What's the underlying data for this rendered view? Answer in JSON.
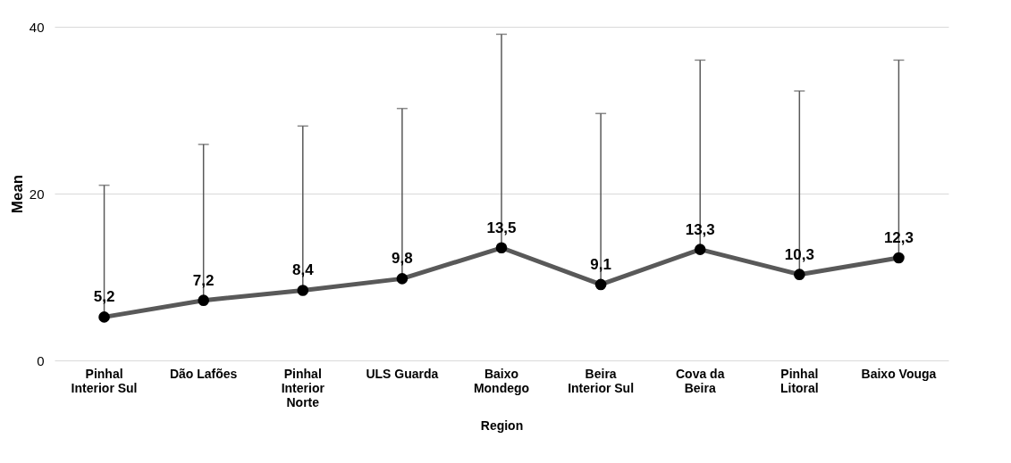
{
  "chart_data": {
    "type": "line",
    "xlabel": "Region",
    "ylabel": "Mean",
    "categories": [
      "Pinhal Interior Sul",
      "Dão Lafões",
      "Pinhal Interior Norte",
      "ULS Guarda",
      "Baixo Mondego",
      "Beira Interior Sul",
      "Cova da Beira",
      "Pinhal Litoral",
      "Baixo Vouga"
    ],
    "series": [
      {
        "color": "#595959",
        "values": [
          5.2,
          7.2,
          8.4,
          9.8,
          13.5,
          9.1,
          13.3,
          10.3,
          12.3
        ],
        "value_labels": [
          "5,2",
          "7,2",
          "8,4",
          "9,8",
          "13,5",
          "9,1",
          "13,3",
          "10,3",
          "12,3"
        ],
        "errors": [
          [
            5.2,
            21.0
          ],
          [
            7.2,
            25.9
          ],
          [
            8.4,
            28.1
          ],
          [
            9.8,
            30.2
          ],
          [
            13.5,
            39.1
          ],
          [
            9.1,
            29.6
          ],
          [
            13.3,
            36.0
          ],
          [
            10.3,
            32.3
          ],
          [
            12.3,
            36.0
          ]
        ]
      }
    ],
    "ylim": [
      0,
      40
    ],
    "yticks": [
      0,
      20,
      40
    ],
    "grid": "y",
    "marker": "circle",
    "line_style": "solid"
  }
}
